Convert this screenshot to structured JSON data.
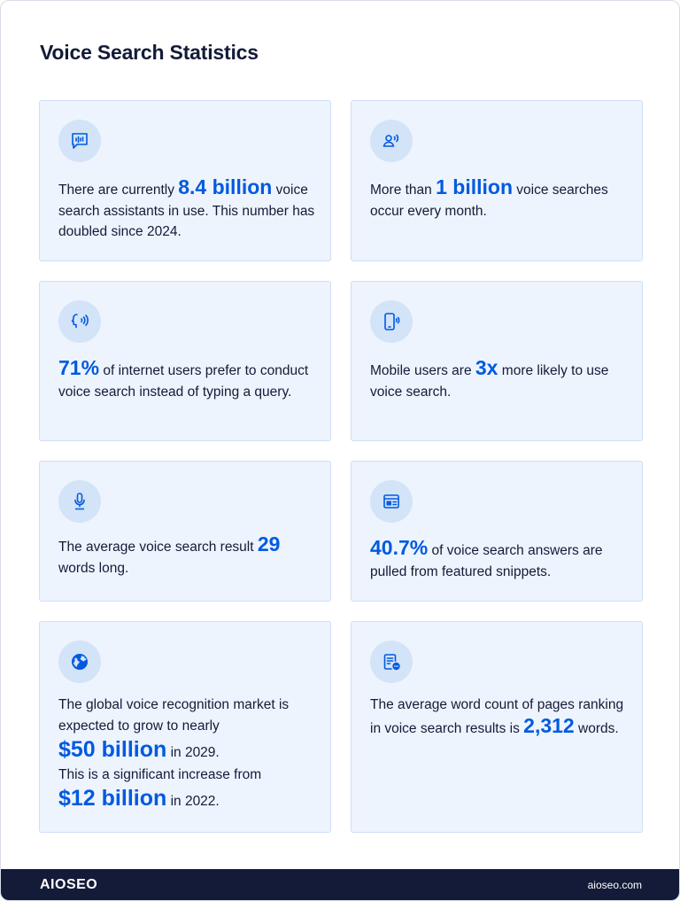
{
  "title": "Voice Search Statistics",
  "accent_color": "#005ae0",
  "cards": [
    {
      "icon": "chat-audio-waveform-icon",
      "pre": "There are currently ",
      "stat": "8.4 billion",
      "post": " voice search assistants in use. This number has doubled since 2024."
    },
    {
      "icon": "user-speaking-icon",
      "pre": "More than ",
      "stat": "1 billion",
      "post": " voice searches occur every month."
    },
    {
      "icon": "speaking-head-icon",
      "pre": "",
      "stat": "71%",
      "post": "  of internet users prefer to conduct voice search instead of typing a query."
    },
    {
      "icon": "mobile-phone-sound-icon",
      "pre": "Mobile users are ",
      "stat": "3x",
      "post": " more likely to use voice search."
    },
    {
      "icon": "microphone-icon",
      "pre": "The average voice search result ",
      "stat": "29",
      "post": " words long."
    },
    {
      "icon": "browser-window-icon",
      "pre": "",
      "stat": "40.7%",
      "post": " of voice search answers are pulled from featured snippets."
    },
    {
      "icon": "globe-icon",
      "line1": "The global voice recognition market is expected to grow to nearly",
      "stat1": "$50 billion",
      "post1": "  in 2029.",
      "line2": "This is a significant increase from",
      "stat2": "$12 billion",
      "post2": " in 2022."
    },
    {
      "icon": "document-chat-icon",
      "pre": "The average word count of pages ranking in voice search results is ",
      "stat": "2,312",
      "post": " words."
    }
  ],
  "footer": {
    "logo": "AIOSEO",
    "site": "aioseo.com"
  }
}
